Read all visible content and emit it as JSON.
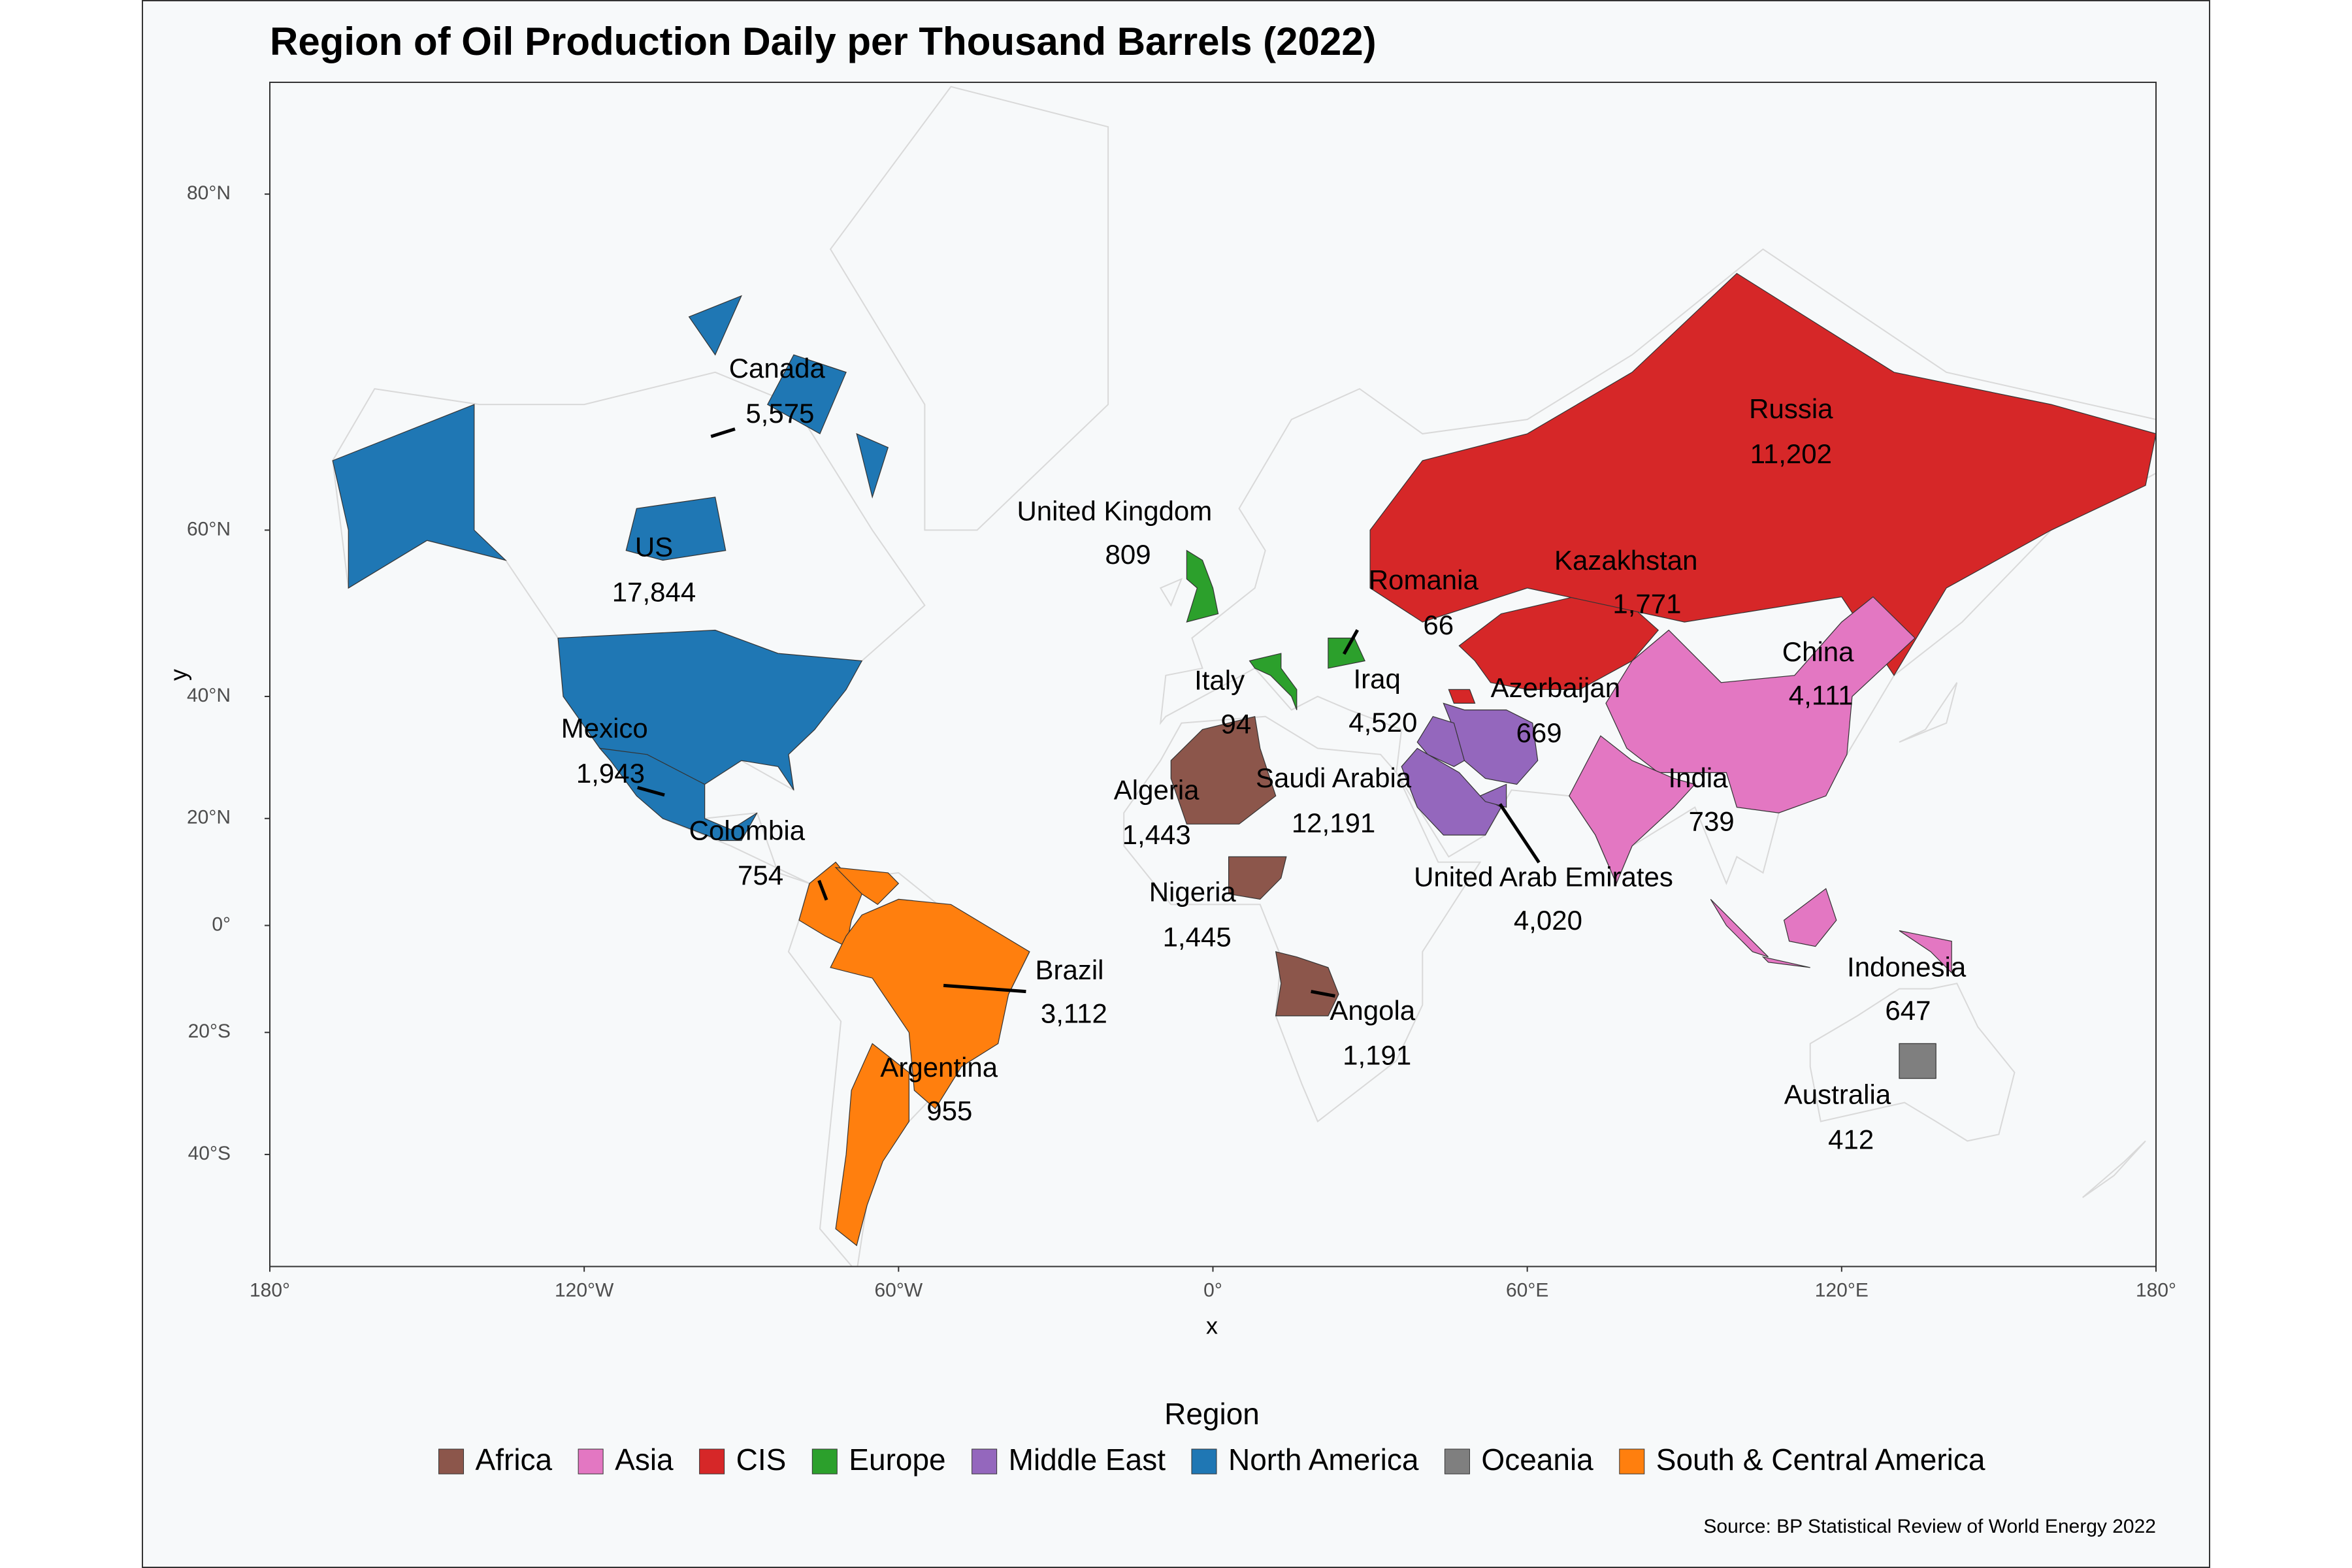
{
  "chart_data": {
    "type": "map",
    "title": "Region of Oil Production Daily per Thousand Barrels (2022)",
    "xlabel": "x",
    "ylabel": "y",
    "xlim": [
      -180,
      180
    ],
    "ylim": [
      -54.4,
      83.1
    ],
    "xticks": [
      {
        "value": -180,
        "label": "180°"
      },
      {
        "value": -120,
        "label": "120°W"
      },
      {
        "value": -60,
        "label": "60°W"
      },
      {
        "value": 0,
        "label": "0°"
      },
      {
        "value": 60,
        "label": "60°E"
      },
      {
        "value": 120,
        "label": "120°E"
      },
      {
        "value": 180,
        "label": "180°"
      }
    ],
    "yticks": [
      {
        "value": 80,
        "label": "80°N"
      },
      {
        "value": 60,
        "label": "60°N"
      },
      {
        "value": 40,
        "label": "40°N"
      },
      {
        "value": 20,
        "label": "20°N"
      },
      {
        "value": 0,
        "label": "0°"
      },
      {
        "value": -20,
        "label": "20°S"
      },
      {
        "value": -40,
        "label": "40°S"
      }
    ],
    "legend_title": "Region",
    "regions": [
      {
        "name": "Africa",
        "color": "#8c564b"
      },
      {
        "name": "Asia",
        "color": "#e377c2"
      },
      {
        "name": "CIS",
        "color": "#d62728"
      },
      {
        "name": "Europe",
        "color": "#2ca02c"
      },
      {
        "name": "Middle East",
        "color": "#9467bd"
      },
      {
        "name": "North America",
        "color": "#1f77b4"
      },
      {
        "name": "Oceania",
        "color": "#7f7f7f"
      },
      {
        "name": "South & Central America",
        "color": "#ff7f0e"
      }
    ],
    "countries": [
      {
        "name": "Canada",
        "region": "North America",
        "value": 5575,
        "value_label": "5,575"
      },
      {
        "name": "US",
        "region": "North America",
        "value": 17844,
        "value_label": "17,844"
      },
      {
        "name": "Mexico",
        "region": "North America",
        "value": 1943,
        "value_label": "1,943"
      },
      {
        "name": "Colombia",
        "region": "South & Central America",
        "value": 754,
        "value_label": "754"
      },
      {
        "name": "Brazil",
        "region": "South & Central America",
        "value": 3112,
        "value_label": "3,112"
      },
      {
        "name": "Argentina",
        "region": "South & Central America",
        "value": 955,
        "value_label": "955"
      },
      {
        "name": "United Kingdom",
        "region": "Europe",
        "value": 809,
        "value_label": "809"
      },
      {
        "name": "Italy",
        "region": "Europe",
        "value": 94,
        "value_label": "94"
      },
      {
        "name": "Romania",
        "region": "Europe",
        "value": 66,
        "value_label": "66"
      },
      {
        "name": "Algeria",
        "region": "Africa",
        "value": 1443,
        "value_label": "1,443"
      },
      {
        "name": "Nigeria",
        "region": "Africa",
        "value": 1445,
        "value_label": "1,445"
      },
      {
        "name": "Angola",
        "region": "Africa",
        "value": 1191,
        "value_label": "1,191"
      },
      {
        "name": "Iraq",
        "region": "Middle East",
        "value": 4520,
        "value_label": "4,520"
      },
      {
        "name": "Saudi Arabia",
        "region": "Middle East",
        "value": 12191,
        "value_label": "12,191"
      },
      {
        "name": "United Arab Emirates",
        "region": "Middle East",
        "value": 4020,
        "value_label": "4,020"
      },
      {
        "name": "Azerbaijan",
        "region": "CIS",
        "value": 669,
        "value_label": "669"
      },
      {
        "name": "Kazakhstan",
        "region": "CIS",
        "value": 1771,
        "value_label": "1,771"
      },
      {
        "name": "Russia",
        "region": "CIS",
        "value": 11202,
        "value_label": "11,202"
      },
      {
        "name": "China",
        "region": "Asia",
        "value": 4111,
        "value_label": "4,111"
      },
      {
        "name": "India",
        "region": "Asia",
        "value": 739,
        "value_label": "739"
      },
      {
        "name": "Indonesia",
        "region": "Asia",
        "value": 647,
        "value_label": "647"
      },
      {
        "name": "Australia",
        "region": "Oceania",
        "value": 412,
        "value_label": "412"
      }
    ],
    "source": "Source: BP Statistical Review of World Energy 2022"
  }
}
